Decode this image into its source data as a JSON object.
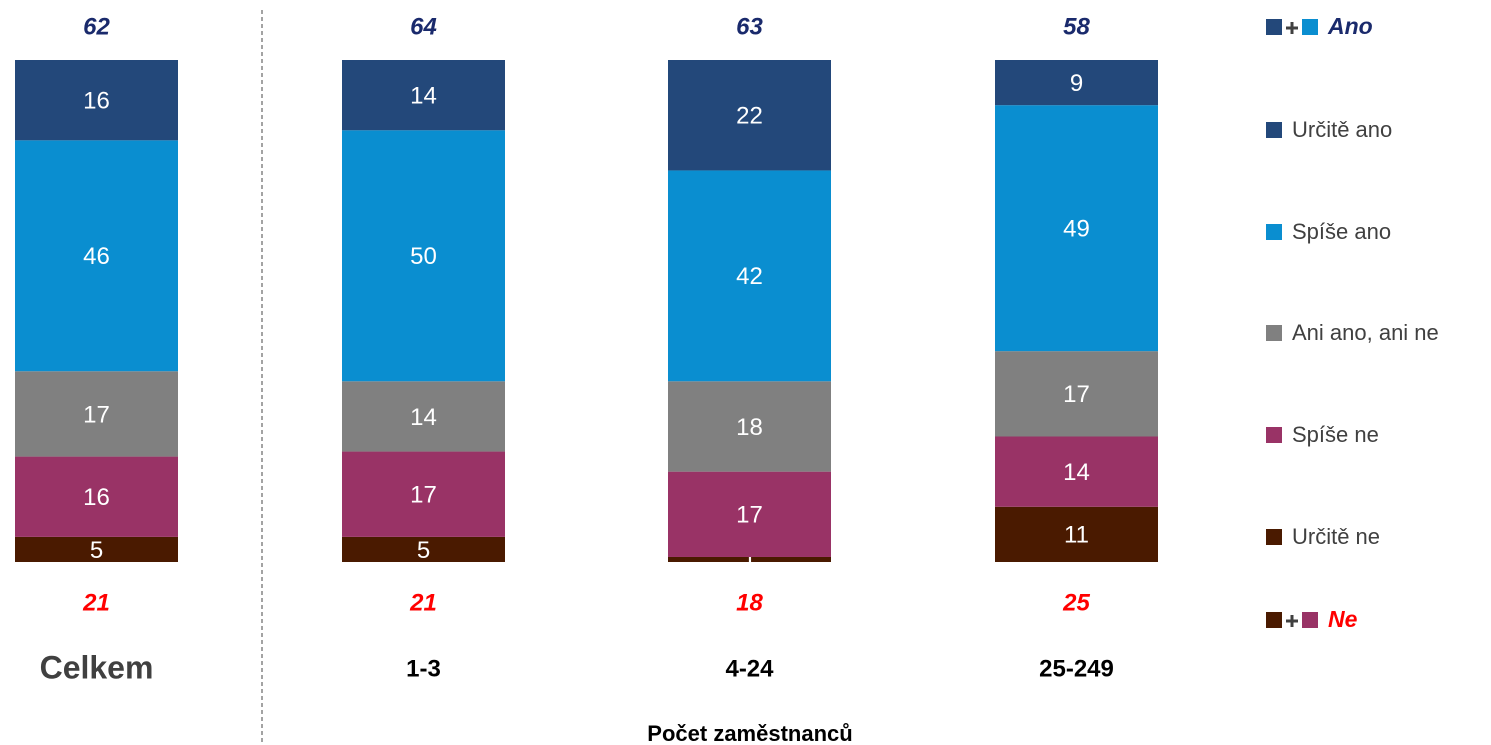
{
  "chart_data": {
    "type": "stacked_bar",
    "categories": [
      "Celkem",
      "1-3",
      "4-24",
      "25-249"
    ],
    "x_axis_label": "Počet zaměstnanců",
    "ylim": [
      0,
      100
    ],
    "series": [
      {
        "name": "Určitě ano",
        "color": "#23487a",
        "values": [
          16,
          14,
          22,
          9
        ]
      },
      {
        "name": "Spíše ano",
        "color": "#0a8ed0",
        "values": [
          46,
          50,
          42,
          49
        ]
      },
      {
        "name": "Ani ano, ani ne",
        "color": "#808080",
        "values": [
          17,
          14,
          18,
          17
        ]
      },
      {
        "name": "Spíše ne",
        "color": "#993366",
        "values": [
          16,
          17,
          17,
          14
        ]
      },
      {
        "name": "Určitě ne",
        "color": "#4a1a00",
        "values": [
          5,
          5,
          1,
          11
        ]
      }
    ],
    "legend_groups": [
      {
        "label": "Ano",
        "color": "#1a2a6c",
        "values": [
          62,
          64,
          63,
          58
        ]
      },
      {
        "label": "Ne",
        "color": "#ff0000",
        "values": [
          21,
          21,
          18,
          25
        ]
      }
    ]
  }
}
